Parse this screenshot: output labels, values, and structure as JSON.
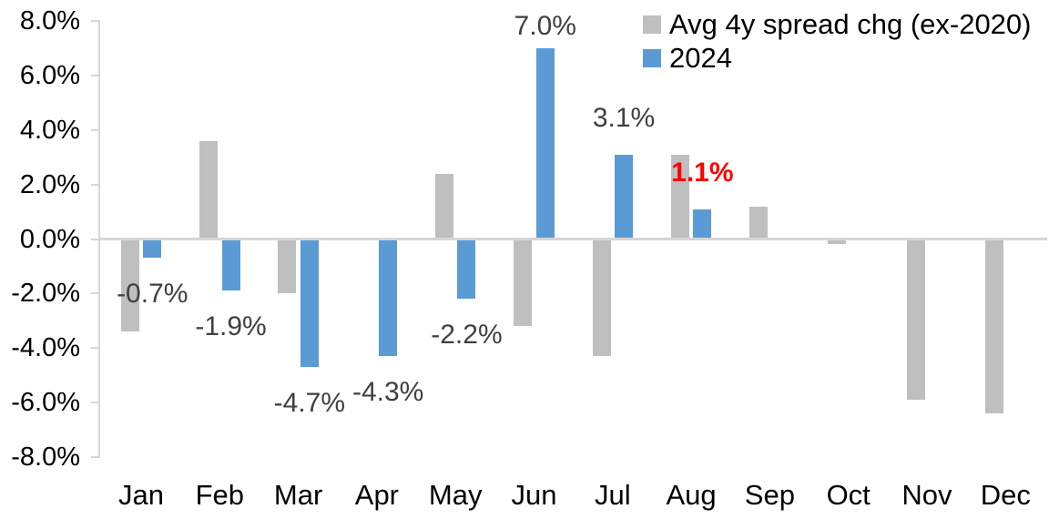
{
  "chart_data": {
    "type": "bar",
    "categories": [
      "Jan",
      "Feb",
      "Mar",
      "Apr",
      "May",
      "Jun",
      "Jul",
      "Aug",
      "Sep",
      "Oct",
      "Nov",
      "Dec"
    ],
    "series": [
      {
        "name": "Avg 4y spread chg (ex-2020)",
        "color": "#BFBFBF",
        "values": [
          -3.4,
          3.6,
          -2.0,
          0.0,
          2.4,
          -3.2,
          -4.3,
          3.1,
          1.2,
          -0.2,
          -5.9,
          -6.4
        ]
      },
      {
        "name": "2024",
        "color": "#5B9BD5",
        "values": [
          -0.7,
          -1.9,
          -4.7,
          -4.3,
          -2.2,
          7.0,
          3.1,
          1.1,
          null,
          null,
          null,
          null
        ]
      }
    ],
    "data_labels": [
      {
        "category": "Jan",
        "series": "2024",
        "text": "-0.7%",
        "color": "#404040",
        "bold": false
      },
      {
        "category": "Feb",
        "series": "2024",
        "text": "-1.9%",
        "color": "#404040",
        "bold": false
      },
      {
        "category": "Mar",
        "series": "2024",
        "text": "-4.7%",
        "color": "#404040",
        "bold": false
      },
      {
        "category": "Apr",
        "series": "2024",
        "text": "-4.3%",
        "color": "#404040",
        "bold": false
      },
      {
        "category": "May",
        "series": "2024",
        "text": "-2.2%",
        "color": "#404040",
        "bold": false
      },
      {
        "category": "Jun",
        "series": "2024",
        "text": "7.0%",
        "color": "#404040",
        "bold": false
      },
      {
        "category": "Jul",
        "series": "2024",
        "text": "3.1%",
        "color": "#404040",
        "bold": false
      },
      {
        "category": "Aug",
        "series": "2024",
        "text": "1.1%",
        "color": "#FF0000",
        "bold": true
      }
    ],
    "y_axis": {
      "ticks": [
        {
          "label": "8.0%",
          "value": 8
        },
        {
          "label": "6.0%",
          "value": 6
        },
        {
          "label": "4.0%",
          "value": 4
        },
        {
          "label": "2.0%",
          "value": 2
        },
        {
          "label": "0.0%",
          "value": 0
        },
        {
          "label": "-2.0%",
          "value": -2
        },
        {
          "label": "-4.0%",
          "value": -4
        },
        {
          "label": "-6.0%",
          "value": -6
        },
        {
          "label": "-8.0%",
          "value": -8
        }
      ],
      "ylim": [
        -8,
        8
      ]
    },
    "legend": {
      "position": "top-right"
    },
    "grid": "off",
    "axis_color": "#D6D6D6"
  }
}
